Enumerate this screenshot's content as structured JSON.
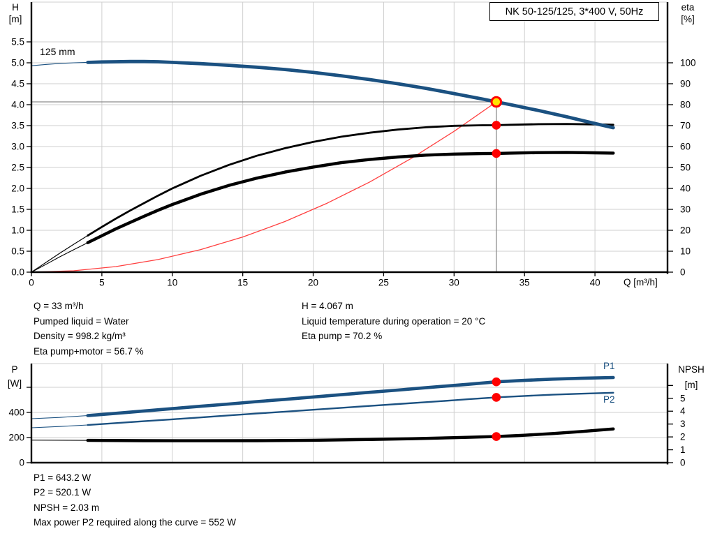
{
  "colors": {
    "curve_blue": "#1b5181",
    "curve_black": "#000000",
    "system_red": "#ff4040",
    "marker_red": "#ff0000",
    "duty_yellow": "#ffe400",
    "grid": "#cfcfcf",
    "ref_line": "#8c8c8c",
    "axis": "#000000"
  },
  "info_top": {
    "left": [
      "Q = 33 m³/h",
      "Pumped liquid = Water",
      "Density = 998.2 kg/m³",
      "Eta pump+motor = 56.7 %"
    ],
    "right": [
      "H = 4.067 m",
      "Liquid temperature during operation = 20 °C",
      "Eta pump = 70.2 %"
    ]
  },
  "info_bottom": [
    "P1 = 643.2 W",
    "P2 = 520.1 W",
    "NPSH = 2.03 m",
    "Max power P2 required along the curve = 552 W"
  ],
  "chart_data": [
    {
      "type": "line",
      "name": "qh-eta-chart",
      "title": "NK 50-125/125, 3*400 V, 50Hz",
      "x_axis": {
        "label": "Q [m³/h]",
        "min": 0,
        "max": 45.15,
        "ticks": [
          0,
          5,
          10,
          15,
          20,
          25,
          30,
          35,
          40
        ],
        "show_labels": true
      },
      "y_left": {
        "label_lines": [
          "H",
          "[m]"
        ],
        "min": 0,
        "max": 6.45,
        "decimals": 1,
        "ticks": [
          0,
          0.5,
          1,
          1.5,
          2,
          2.5,
          3,
          3.5,
          4,
          4.5,
          5,
          5.5
        ]
      },
      "y_right": {
        "label_lines": [
          "eta",
          "[%]"
        ],
        "min": 0,
        "max": 129,
        "decimals": 0,
        "ticks": [
          0,
          10,
          20,
          30,
          40,
          50,
          60,
          70,
          80,
          90,
          100
        ]
      },
      "annotations": [
        {
          "text": "125 mm"
        }
      ],
      "series": [
        {
          "name": "system-curve",
          "axis": "left",
          "color_key": "system_red",
          "width": 1.3,
          "points": [
            [
              0,
              0
            ],
            [
              3,
              0.034
            ],
            [
              6,
              0.134
            ],
            [
              9,
              0.302
            ],
            [
              12,
              0.538
            ],
            [
              15,
              0.84
            ],
            [
              18,
              1.21
            ],
            [
              21,
              1.648
            ],
            [
              24,
              2.152
            ],
            [
              27,
              2.724
            ],
            [
              30,
              3.363
            ],
            [
              33,
              4.067
            ]
          ]
        },
        {
          "name": "eta-pump-motor",
          "axis": "right",
          "color_key": "curve_black",
          "width": 4.4,
          "thin_until": 4,
          "points": [
            [
              0,
              0
            ],
            [
              1,
              3.6
            ],
            [
              2,
              7.3
            ],
            [
              3,
              10.7
            ],
            [
              4,
              14.1
            ],
            [
              5,
              17.4
            ],
            [
              6,
              20.7
            ],
            [
              7,
              23.7
            ],
            [
              8,
              26.7
            ],
            [
              9,
              29.6
            ],
            [
              10,
              32.3
            ],
            [
              12,
              37.2
            ],
            [
              14,
              41.4
            ],
            [
              16,
              44.9
            ],
            [
              18,
              47.8
            ],
            [
              20,
              50.2
            ],
            [
              22,
              52.3
            ],
            [
              24,
              53.8
            ],
            [
              26,
              55.0
            ],
            [
              28,
              55.9
            ],
            [
              30,
              56.4
            ],
            [
              32,
              56.65
            ],
            [
              33,
              56.7
            ],
            [
              34,
              56.85
            ],
            [
              36,
              57.1
            ],
            [
              38,
              57.2
            ],
            [
              40,
              57.0
            ],
            [
              41.3,
              56.85
            ]
          ]
        },
        {
          "name": "eta-pump",
          "axis": "right",
          "color_key": "curve_black",
          "width": 2.8,
          "thin_until": 4,
          "points": [
            [
              0,
              0
            ],
            [
              1,
              4.5
            ],
            [
              2,
              9
            ],
            [
              3,
              13.3
            ],
            [
              4,
              17.5
            ],
            [
              5,
              21.6
            ],
            [
              6,
              25.6
            ],
            [
              7,
              29.4
            ],
            [
              8,
              33
            ],
            [
              9,
              36.6
            ],
            [
              10,
              40
            ],
            [
              12,
              46
            ],
            [
              14,
              51.2
            ],
            [
              16,
              55.6
            ],
            [
              18,
              59.2
            ],
            [
              20,
              62.2
            ],
            [
              22,
              64.7
            ],
            [
              24,
              66.6
            ],
            [
              26,
              68.1
            ],
            [
              28,
              69.2
            ],
            [
              30,
              69.9
            ],
            [
              32,
              70.15
            ],
            [
              33,
              70.2
            ],
            [
              34,
              70.4
            ],
            [
              36,
              70.7
            ],
            [
              38,
              70.8
            ],
            [
              40,
              70.6
            ],
            [
              41.3,
              70.4
            ]
          ]
        },
        {
          "name": "qh-125mm",
          "axis": "left",
          "color_key": "curve_blue",
          "width": 4.8,
          "thin_until": 4,
          "points": [
            [
              0,
              4.93
            ],
            [
              1,
              4.96
            ],
            [
              2,
              4.985
            ],
            [
              3,
              5.0
            ],
            [
              4,
              5.01
            ],
            [
              5,
              5.02
            ],
            [
              6,
              5.025
            ],
            [
              7,
              5.03
            ],
            [
              8,
              5.03
            ],
            [
              9,
              5.025
            ],
            [
              10,
              5.01
            ],
            [
              12,
              4.98
            ],
            [
              14,
              4.94
            ],
            [
              16,
              4.895
            ],
            [
              18,
              4.84
            ],
            [
              20,
              4.77
            ],
            [
              22,
              4.69
            ],
            [
              24,
              4.6
            ],
            [
              26,
              4.5
            ],
            [
              28,
              4.39
            ],
            [
              30,
              4.265
            ],
            [
              32,
              4.135
            ],
            [
              33,
              4.067
            ],
            [
              34,
              4.0
            ],
            [
              36,
              3.86
            ],
            [
              38,
              3.71
            ],
            [
              40,
              3.55
            ],
            [
              41.3,
              3.45
            ]
          ]
        }
      ],
      "ref_lines": [
        {
          "type": "h",
          "value": 4.067,
          "x_from": 0,
          "x_to": 33
        },
        {
          "type": "v",
          "value": 33,
          "y_from": 0,
          "y_to": 4.067
        }
      ],
      "markers": [
        {
          "name": "eta-pump-motor-point",
          "x": 33,
          "y": 56.7,
          "axis": "right",
          "r": 6.3,
          "fill_key": "marker_red"
        },
        {
          "name": "eta-pump-point",
          "x": 33,
          "y": 70.2,
          "axis": "right",
          "r": 6.3,
          "fill_key": "marker_red"
        },
        {
          "name": "duty-point",
          "x": 33,
          "y": 4.067,
          "axis": "left",
          "r": 6.8,
          "fill_key": "duty_yellow",
          "stroke_key": "marker_red",
          "stroke_w": 3
        }
      ]
    },
    {
      "type": "line",
      "name": "power-npsh-chart",
      "x_axis": {
        "label": "",
        "min": 0,
        "max": 45.15,
        "ticks": [
          5,
          10,
          15,
          20,
          25,
          30,
          35,
          40
        ],
        "show_labels": false
      },
      "y_left": {
        "label_lines": [
          "P",
          "[W]"
        ],
        "min": 0,
        "max": 789,
        "decimals": 0,
        "max_label": 400,
        "ticks": [
          0,
          200,
          400,
          600
        ]
      },
      "y_right": {
        "label_lines": [
          "NPSH",
          "[m]"
        ],
        "min": 0,
        "max": 7.7,
        "decimals": 0,
        "max_label": 5,
        "ticks": [
          0,
          1,
          2,
          3,
          4,
          5,
          6
        ]
      },
      "annotations": [
        {
          "text": "P1"
        },
        {
          "text": "P2"
        }
      ],
      "series": [
        {
          "name": "P1",
          "axis": "left",
          "color_key": "curve_blue",
          "width": 4.6,
          "thin_until": 4,
          "points": [
            [
              0,
              350
            ],
            [
              2,
              360
            ],
            [
              4,
              375
            ],
            [
              6,
              393
            ],
            [
              8,
              412
            ],
            [
              10,
              430
            ],
            [
              12,
              449
            ],
            [
              14,
              467
            ],
            [
              16,
              486
            ],
            [
              18,
              504
            ],
            [
              20,
              523
            ],
            [
              22,
              541
            ],
            [
              24,
              560
            ],
            [
              26,
              578
            ],
            [
              28,
              597
            ],
            [
              30,
              615
            ],
            [
              31,
              624
            ],
            [
              33,
              643.2
            ],
            [
              35,
              655
            ],
            [
              37,
              665
            ],
            [
              39,
              672
            ],
            [
              41.3,
              678
            ]
          ]
        },
        {
          "name": "P2",
          "axis": "left",
          "color_key": "curve_blue",
          "width": 2.4,
          "thin_until": 4,
          "points": [
            [
              0,
              278
            ],
            [
              2,
              288
            ],
            [
              4,
              300
            ],
            [
              6,
              315
            ],
            [
              8,
              330
            ],
            [
              10,
              345
            ],
            [
              12,
              360
            ],
            [
              14,
              376
            ],
            [
              16,
              391
            ],
            [
              18,
              406
            ],
            [
              20,
              421
            ],
            [
              22,
              437
            ],
            [
              24,
              452
            ],
            [
              26,
              467
            ],
            [
              28,
              482
            ],
            [
              30,
              497
            ],
            [
              31,
              505
            ],
            [
              33,
              520.1
            ],
            [
              35,
              531
            ],
            [
              37,
              541
            ],
            [
              39,
              549
            ],
            [
              41.3,
              557
            ]
          ]
        },
        {
          "name": "NPSH",
          "axis": "right",
          "color_key": "curve_black",
          "width": 4.4,
          "thin_until": 4,
          "points": [
            [
              0,
              1.75
            ],
            [
              4,
              1.73
            ],
            [
              8,
              1.71
            ],
            [
              12,
              1.7
            ],
            [
              16,
              1.71
            ],
            [
              20,
              1.74
            ],
            [
              24,
              1.8
            ],
            [
              27,
              1.86
            ],
            [
              30,
              1.94
            ],
            [
              33,
              2.03
            ],
            [
              35,
              2.13
            ],
            [
              37,
              2.26
            ],
            [
              39,
              2.42
            ],
            [
              41.3,
              2.62
            ]
          ]
        }
      ],
      "ref_lines": [],
      "markers": [
        {
          "name": "p1-point",
          "x": 33,
          "y": 643.2,
          "axis": "left",
          "r": 6.3,
          "fill_key": "marker_red"
        },
        {
          "name": "p2-point",
          "x": 33,
          "y": 520.1,
          "axis": "left",
          "r": 6.3,
          "fill_key": "marker_red"
        },
        {
          "name": "npsh-point",
          "x": 33,
          "y": 2.03,
          "axis": "right",
          "r": 6.3,
          "fill_key": "marker_red"
        }
      ]
    }
  ]
}
